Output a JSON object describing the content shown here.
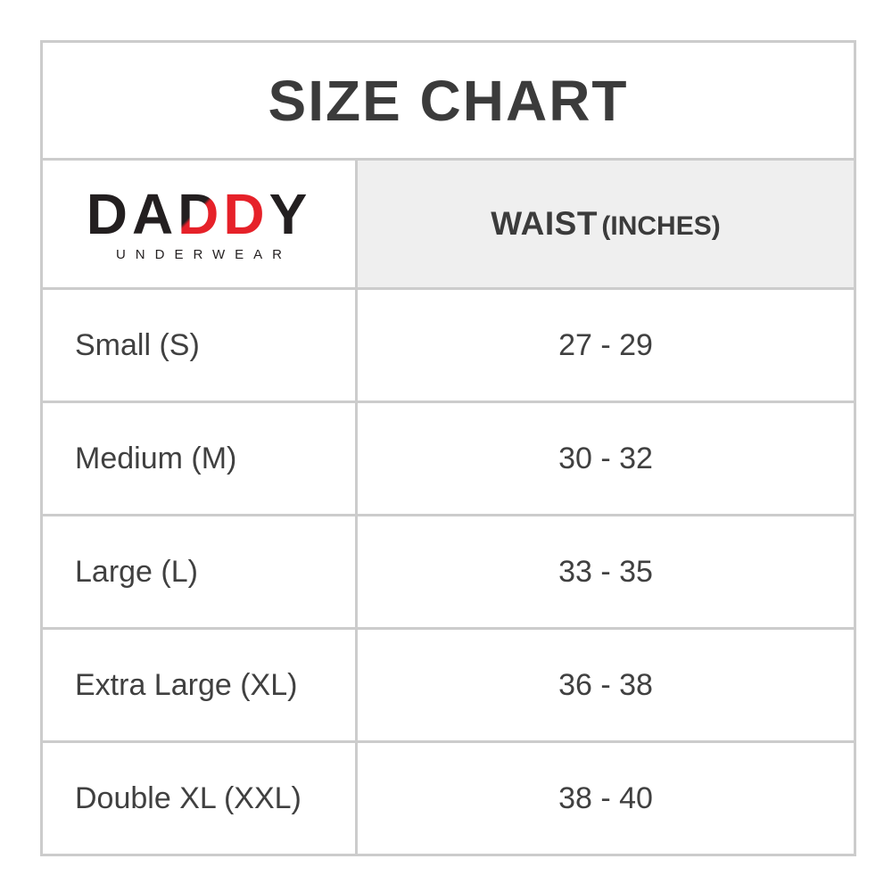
{
  "title": "SIZE CHART",
  "brand": {
    "wordmark_da": "DA",
    "wordmark_dd": "DD",
    "wordmark_y": "Y",
    "subtitle": "UNDERWEAR"
  },
  "columns": {
    "waist_label": "WAIST",
    "waist_unit": "(INCHES)"
  },
  "rows": [
    {
      "size": "Small (S)",
      "waist": "27 - 29"
    },
    {
      "size": "Medium (M)",
      "waist": "30 - 32"
    },
    {
      "size": "Large (L)",
      "waist": "33 - 35"
    },
    {
      "size": "Extra Large (XL)",
      "waist": "36 - 38"
    },
    {
      "size": "Double XL (XXL)",
      "waist": "38 - 40"
    }
  ],
  "colors": {
    "brand_red": "#e62129",
    "brand_black": "#231f20",
    "header_bg": "#efefef",
    "border": "#cccccc",
    "text": "#3d3d3d"
  }
}
